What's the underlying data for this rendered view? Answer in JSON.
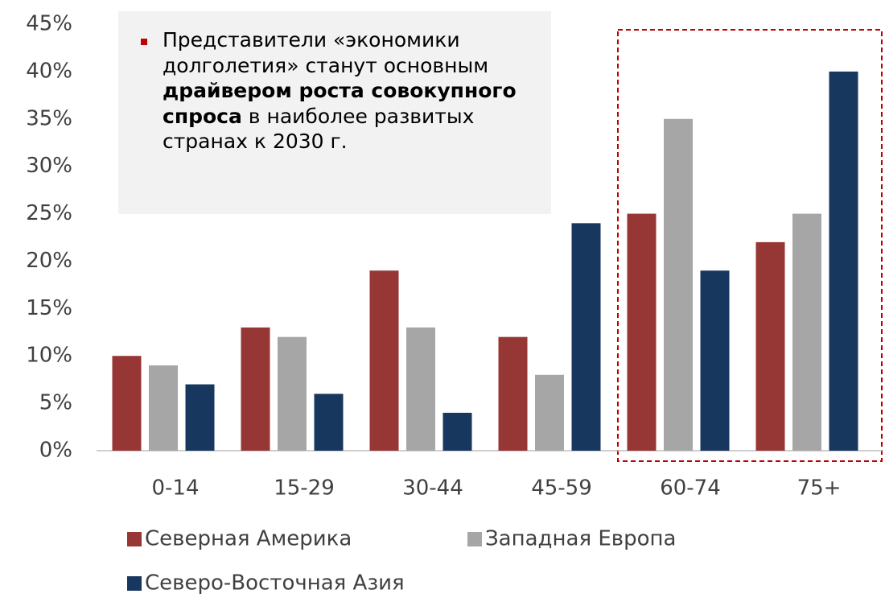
{
  "chart_data": {
    "type": "bar",
    "annotation": [
      "Представители «экономики долголетия» станут основным ",
      "драйвером роста совокупного спроса",
      " в наиболее развитых странах к 2030 г."
    ],
    "categories": [
      "0-14",
      "15-29",
      "30-44",
      "45-59",
      "60-74",
      "75+"
    ],
    "series": [
      {
        "name": "Северная Америка",
        "color": "#973735",
        "values": [
          10,
          13,
          19,
          12,
          25,
          22
        ]
      },
      {
        "name": "Западная Европа",
        "color": "#a6a6a6",
        "values": [
          9,
          12,
          13,
          8,
          35,
          25
        ]
      },
      {
        "name": "Северо-Восточная Азия",
        "color": "#17375e",
        "values": [
          7,
          6,
          4,
          24,
          19,
          40
        ]
      }
    ],
    "ylim": [
      0,
      45
    ],
    "yticks": [
      {
        "value": 0,
        "label": "0%"
      },
      {
        "value": 5,
        "label": "5%"
      },
      {
        "value": 10,
        "label": "10%"
      },
      {
        "value": 15,
        "label": "15%"
      },
      {
        "value": 20,
        "label": "20%"
      },
      {
        "value": 25,
        "label": "25%"
      },
      {
        "value": 30,
        "label": "30%"
      },
      {
        "value": 35,
        "label": "35%"
      },
      {
        "value": 40,
        "label": "40%"
      },
      {
        "value": 45,
        "label": "45%"
      }
    ],
    "grid": false
  }
}
